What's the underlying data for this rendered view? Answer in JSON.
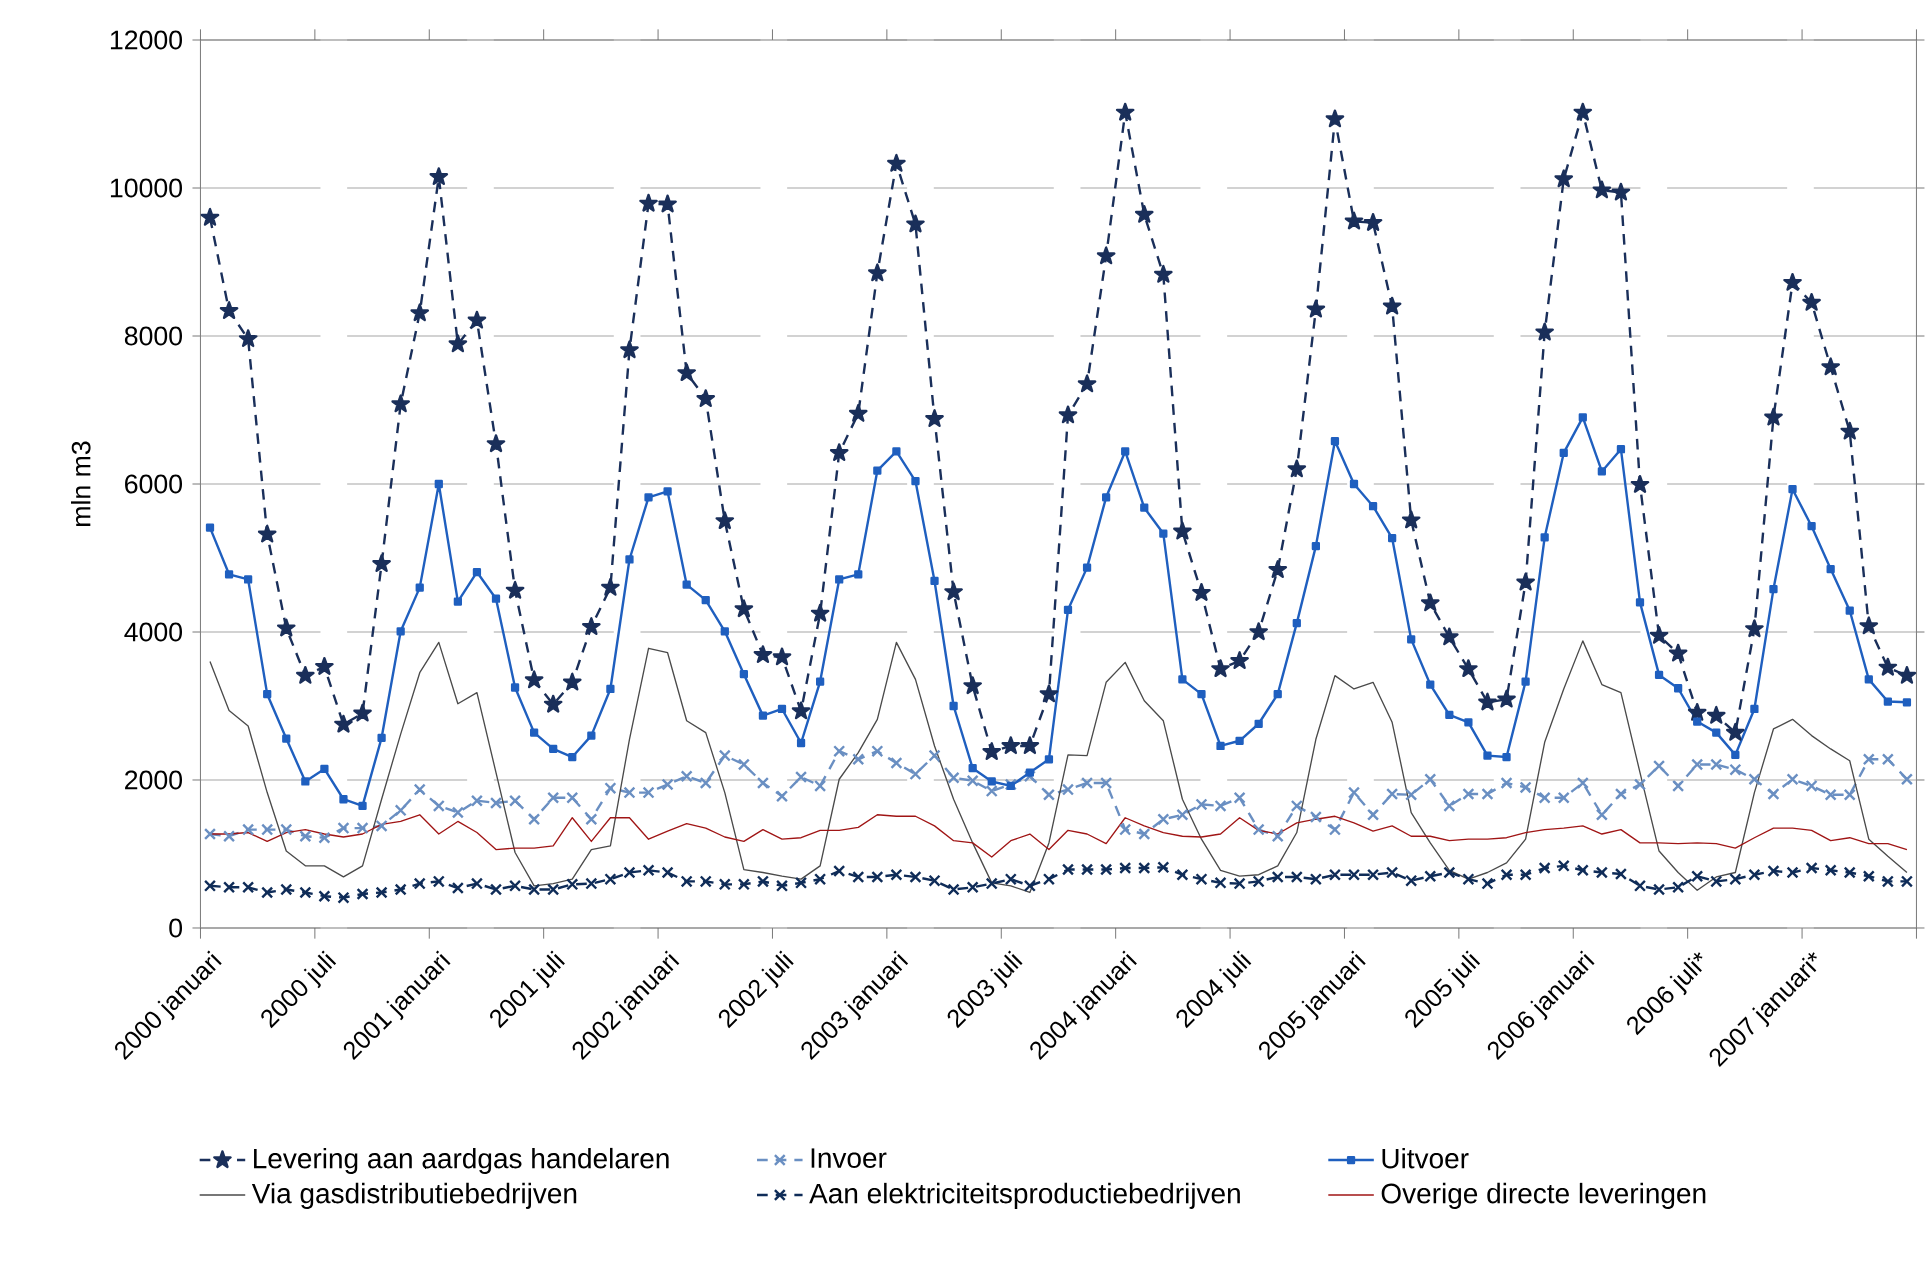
{
  "chart_data": {
    "type": "line",
    "ylabel": "mln m3",
    "categories": [
      "2000 januari",
      null,
      null,
      null,
      null,
      null,
      "2000 juli",
      null,
      null,
      null,
      null,
      null,
      "2001 januari",
      null,
      null,
      null,
      null,
      null,
      "2001 juli",
      null,
      null,
      null,
      null,
      null,
      "2002 januari",
      null,
      null,
      null,
      null,
      null,
      "2002 juli",
      null,
      null,
      null,
      null,
      null,
      "2003 januari",
      null,
      null,
      null,
      null,
      null,
      "2003 juli",
      null,
      null,
      null,
      null,
      null,
      "2004 januari",
      null,
      null,
      null,
      null,
      null,
      "2004 juli",
      null,
      null,
      null,
      null,
      null,
      "2005 januari",
      null,
      null,
      null,
      null,
      null,
      "2005 juli",
      null,
      null,
      null,
      null,
      null,
      "2006 januari",
      null,
      null,
      null,
      null,
      null,
      "2006 juli*",
      null,
      null,
      null,
      null,
      null,
      "2007 januari*",
      null,
      null,
      null,
      null,
      null
    ],
    "ylim": [
      0,
      12000
    ],
    "yticks": [
      0,
      2000,
      4000,
      6000,
      8000,
      10000,
      12000
    ],
    "grid": "y",
    "legend": "bottom",
    "series": [
      {
        "name": "Levering aan aardgas handelaren",
        "color": "#1a2f5a",
        "marker": "star",
        "line_style": "dashed",
        "values": [
          9600,
          8340,
          7960,
          5320,
          4050,
          3410,
          3530,
          2750,
          2900,
          4920,
          7080,
          8310,
          10150,
          7890,
          8210,
          6540,
          4560,
          3350,
          3020,
          3320,
          4070,
          4600,
          7810,
          9790,
          9780,
          7500,
          7150,
          5500,
          4310,
          3690,
          3660,
          2930,
          4250,
          6420,
          6950,
          8850,
          10330,
          9510,
          6880,
          4540,
          3270,
          2380,
          2460,
          2460,
          3160,
          6930,
          7350,
          9080,
          11020,
          9640,
          8830,
          5360,
          4530,
          3500,
          3610,
          4000,
          4840,
          6200,
          8360,
          10930,
          9550,
          9530,
          8400,
          5510,
          4390,
          3930,
          3500,
          3050,
          3090,
          4670,
          8050,
          10120,
          11020,
          9970,
          9940,
          5990,
          3950,
          3710,
          2910,
          2870,
          2640,
          4040,
          6900,
          8720,
          8450,
          7580,
          6710,
          4080,
          3520,
          3410
        ]
      },
      {
        "name": "Invoer",
        "color": "#6a8fc2",
        "marker": "cross",
        "line_style": "dashed",
        "values": [
          1270,
          1240,
          1330,
          1330,
          1330,
          1240,
          1220,
          1350,
          1350,
          1380,
          1590,
          1870,
          1650,
          1560,
          1720,
          1690,
          1720,
          1470,
          1760,
          1760,
          1470,
          1890,
          1830,
          1830,
          1940,
          2050,
          1960,
          2330,
          2210,
          1960,
          1780,
          2040,
          1920,
          2390,
          2280,
          2390,
          2230,
          2080,
          2330,
          2030,
          1990,
          1850,
          1940,
          2050,
          1800,
          1870,
          1960,
          1960,
          1330,
          1270,
          1470,
          1530,
          1670,
          1650,
          1760,
          1330,
          1240,
          1650,
          1500,
          1330,
          1830,
          1530,
          1810,
          1800,
          2010,
          1650,
          1810,
          1810,
          1960,
          1900,
          1760,
          1760,
          1960,
          1530,
          1810,
          1940,
          2190,
          1920,
          2210,
          2210,
          2140,
          2010,
          1810,
          2010,
          1920,
          1800,
          1800,
          2280,
          2280,
          2010
        ]
      },
      {
        "name": "Uitvoer",
        "color": "#1f5fbf",
        "marker": "square",
        "line_style": "solid",
        "values": [
          5410,
          4780,
          4710,
          3160,
          2560,
          1980,
          2150,
          1740,
          1650,
          2570,
          4010,
          4600,
          6000,
          4410,
          4810,
          4450,
          3250,
          2640,
          2420,
          2310,
          2600,
          3230,
          4980,
          5820,
          5900,
          4640,
          4430,
          4010,
          3430,
          2870,
          2960,
          2500,
          3330,
          4710,
          4780,
          6180,
          6440,
          6040,
          4690,
          3000,
          2160,
          1980,
          1920,
          2100,
          2280,
          4300,
          4870,
          5820,
          6440,
          5680,
          5330,
          3360,
          3160,
          2460,
          2530,
          2760,
          3160,
          4120,
          5160,
          6580,
          6000,
          5700,
          5270,
          3900,
          3290,
          2880,
          2780,
          2330,
          2310,
          3330,
          5280,
          6420,
          6900,
          6170,
          6470,
          4400,
          3420,
          3240,
          2790,
          2640,
          2340,
          2960,
          4580,
          5930,
          5430,
          4850,
          4290,
          3360,
          3060,
          3050
        ]
      },
      {
        "name": "Via gasdistributiebedrijven",
        "color": "#4a4a4a",
        "marker": "none",
        "line_style": "solid",
        "values": [
          3600,
          2940,
          2730,
          1830,
          1040,
          840,
          840,
          690,
          840,
          1740,
          2620,
          3450,
          3860,
          3030,
          3180,
          2100,
          1020,
          570,
          600,
          660,
          1060,
          1110,
          2550,
          3780,
          3720,
          2800,
          2640,
          1830,
          790,
          750,
          700,
          660,
          840,
          2010,
          2370,
          2820,
          3860,
          3360,
          2460,
          1740,
          1150,
          610,
          570,
          480,
          1150,
          2340,
          2330,
          3320,
          3590,
          3070,
          2800,
          1740,
          1200,
          780,
          700,
          720,
          840,
          1290,
          2550,
          3410,
          3230,
          3320,
          2780,
          1560,
          1150,
          780,
          660,
          750,
          880,
          1200,
          2510,
          3230,
          3880,
          3290,
          3180,
          2100,
          1040,
          750,
          510,
          690,
          750,
          1830,
          2690,
          2820,
          2600,
          2420,
          2260,
          1200,
          970,
          750
        ]
      },
      {
        "name": "Aan elektriciteitsproductiebedrijven",
        "color": "#0f2c58",
        "marker": "cross",
        "line_style": "dashed",
        "values": [
          570,
          550,
          550,
          480,
          520,
          480,
          430,
          410,
          460,
          480,
          520,
          600,
          630,
          540,
          600,
          520,
          570,
          520,
          520,
          590,
          600,
          660,
          750,
          780,
          750,
          630,
          630,
          590,
          590,
          630,
          570,
          610,
          660,
          770,
          690,
          690,
          720,
          690,
          640,
          520,
          550,
          600,
          660,
          570,
          660,
          790,
          790,
          790,
          810,
          810,
          820,
          720,
          660,
          610,
          600,
          630,
          690,
          690,
          660,
          720,
          720,
          720,
          750,
          640,
          700,
          750,
          660,
          600,
          720,
          720,
          810,
          840,
          780,
          750,
          730,
          570,
          520,
          550,
          700,
          630,
          660,
          720,
          770,
          750,
          810,
          780,
          750,
          700,
          630,
          630
        ]
      },
      {
        "name": "Overige directe leveringen",
        "color": "#a01515",
        "marker": "none",
        "line_style": "solid",
        "values": [
          1270,
          1270,
          1290,
          1170,
          1290,
          1330,
          1270,
          1230,
          1270,
          1400,
          1440,
          1530,
          1270,
          1440,
          1290,
          1060,
          1080,
          1080,
          1110,
          1490,
          1170,
          1490,
          1490,
          1200,
          1310,
          1410,
          1350,
          1230,
          1170,
          1330,
          1200,
          1220,
          1320,
          1320,
          1360,
          1530,
          1510,
          1510,
          1380,
          1180,
          1150,
          960,
          1180,
          1270,
          1060,
          1320,
          1270,
          1140,
          1490,
          1380,
          1290,
          1240,
          1230,
          1270,
          1490,
          1320,
          1270,
          1420,
          1470,
          1510,
          1420,
          1310,
          1380,
          1240,
          1240,
          1180,
          1200,
          1200,
          1220,
          1290,
          1330,
          1350,
          1380,
          1270,
          1330,
          1150,
          1150,
          1140,
          1150,
          1140,
          1080,
          1220,
          1350,
          1350,
          1320,
          1180,
          1220,
          1140,
          1140,
          1060
        ]
      }
    ]
  }
}
